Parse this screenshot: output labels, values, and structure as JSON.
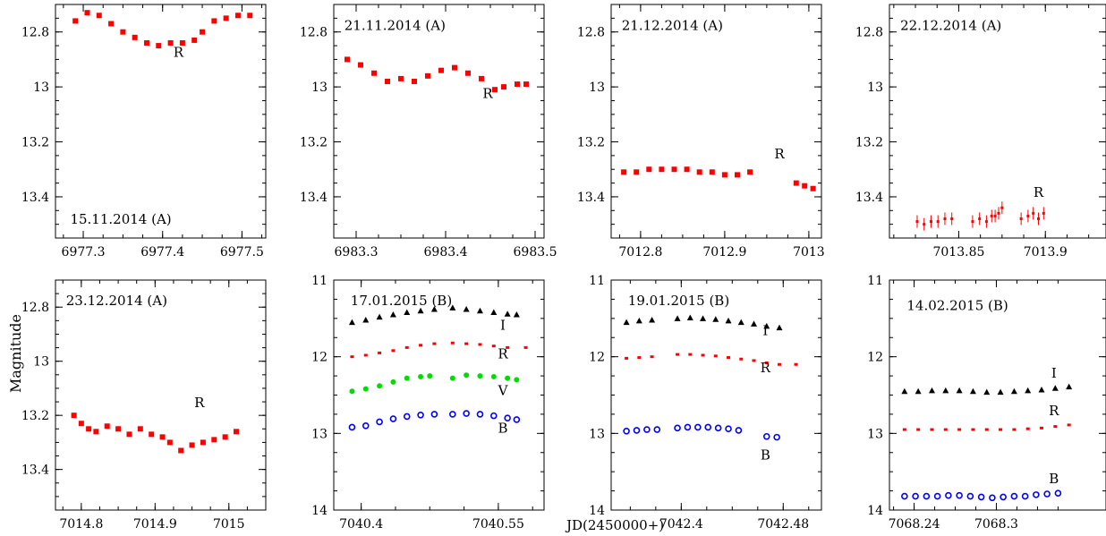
{
  "figure": {
    "ylabel": "Magnitude",
    "xlabel": "JD(2450000+)"
  },
  "chart_data": [
    {
      "type": "scatter",
      "date_label": "15.11.2014 (A)",
      "xlim": [
        6977.265,
        6977.53
      ],
      "ylim": [
        13.55,
        12.7
      ],
      "xticks": [
        6977.3,
        6977.4,
        6977.5
      ],
      "xtick_labels": [
        "6977.3",
        "6977.4",
        "6977.5"
      ],
      "yticks": [
        12.8,
        13,
        13.2,
        13.4
      ],
      "ytick_labels": [
        "12.8",
        "13",
        "13.2",
        "13.4"
      ],
      "series": [
        {
          "name": "R",
          "color": "#ff0000",
          "marker": "square",
          "x": [
            6977.29,
            6977.305,
            6977.32,
            6977.335,
            6977.35,
            6977.365,
            6977.38,
            6977.395,
            6977.41,
            6977.425,
            6977.44,
            6977.45,
            6977.465,
            6977.48,
            6977.495,
            6977.51
          ],
          "y": [
            12.76,
            12.73,
            12.74,
            12.77,
            12.8,
            12.82,
            12.84,
            12.85,
            12.84,
            12.84,
            12.83,
            12.8,
            12.76,
            12.75,
            12.74,
            12.74
          ]
        }
      ],
      "labels": [
        {
          "text": "R",
          "x": 6977.42,
          "y": 12.89
        }
      ]
    },
    {
      "type": "scatter",
      "date_label": "21.11.2014 (A)",
      "xlim": [
        6983.275,
        6983.51
      ],
      "ylim": [
        13.55,
        12.7
      ],
      "xticks": [
        6983.3,
        6983.4,
        6983.5
      ],
      "xtick_labels": [
        "6983.3",
        "6983.4",
        "6983.5"
      ],
      "yticks": [
        12.8,
        13,
        13.2,
        13.4
      ],
      "ytick_labels": [
        "12.8",
        "13",
        "13.2",
        "13.4"
      ],
      "series": [
        {
          "name": "R",
          "color": "#ff0000",
          "marker": "square",
          "x": [
            6983.29,
            6983.305,
            6983.32,
            6983.335,
            6983.35,
            6983.365,
            6983.38,
            6983.395,
            6983.41,
            6983.425,
            6983.44,
            6983.455,
            6983.465,
            6983.48,
            6983.49
          ],
          "y": [
            12.9,
            12.92,
            12.95,
            12.98,
            12.97,
            12.98,
            12.96,
            12.94,
            12.93,
            12.95,
            12.97,
            13.01,
            13.0,
            12.99,
            12.99
          ]
        }
      ],
      "labels": [
        {
          "text": "R",
          "x": 6983.447,
          "y": 13.04
        }
      ]
    },
    {
      "type": "scatter",
      "date_label": "21.12.2014 (A)",
      "xlim": [
        7012.765,
        7013.015
      ],
      "ylim": [
        13.55,
        12.7
      ],
      "xticks": [
        7012.8,
        7012.9,
        7013
      ],
      "xtick_labels": [
        "7012.8",
        "7012.9",
        "7013"
      ],
      "yticks": [
        12.8,
        13,
        13.2,
        13.4
      ],
      "ytick_labels": [
        "12.8",
        "13",
        "13.2",
        "13.4"
      ],
      "series": [
        {
          "name": "R",
          "color": "#ff0000",
          "marker": "square",
          "x": [
            7012.78,
            7012.795,
            7012.81,
            7012.825,
            7012.84,
            7012.855,
            7012.87,
            7012.885,
            7012.9,
            7012.915,
            7012.93,
            7012.985,
            7012.995,
            7013.005
          ],
          "y": [
            13.31,
            13.31,
            13.3,
            13.3,
            13.3,
            13.3,
            13.31,
            13.31,
            13.32,
            13.32,
            13.31,
            13.35,
            13.36,
            13.37
          ]
        }
      ],
      "labels": [
        {
          "text": "R",
          "x": 7012.965,
          "y": 13.26
        }
      ]
    },
    {
      "type": "scatter",
      "date_label": "22.12.2014 (A)",
      "xlim": [
        7013.81,
        7013.935
      ],
      "ylim": [
        13.55,
        12.7
      ],
      "xticks": [
        7013.85,
        7013.9
      ],
      "xtick_labels": [
        "7013.85",
        "7013.9"
      ],
      "yticks": [
        12.8,
        13,
        13.2,
        13.4
      ],
      "ytick_labels": [
        "12.8",
        "13",
        "13.2",
        "13.4"
      ],
      "series": [
        {
          "name": "R",
          "color": "#ff0000",
          "marker": "errorbar",
          "x": [
            7013.826,
            7013.83,
            7013.834,
            7013.838,
            7013.842,
            7013.846,
            7013.858,
            7013.862,
            7013.866,
            7013.869,
            7013.871,
            7013.873,
            7013.875,
            7013.886,
            7013.89,
            7013.893,
            7013.896,
            7013.899
          ],
          "y": [
            13.49,
            13.5,
            13.49,
            13.49,
            13.48,
            13.48,
            13.49,
            13.48,
            13.49,
            13.47,
            13.47,
            13.46,
            13.44,
            13.48,
            13.47,
            13.46,
            13.48,
            13.46
          ]
        }
      ],
      "labels": [
        {
          "text": "R",
          "x": 7013.896,
          "y": 13.4
        }
      ]
    },
    {
      "type": "scatter",
      "date_label": "23.12.2014 (A)",
      "xlim": [
        7014.765,
        7015.05
      ],
      "ylim": [
        13.55,
        12.7
      ],
      "xticks": [
        7014.8,
        7014.9,
        7015
      ],
      "xtick_labels": [
        "7014.8",
        "7014.9",
        "7015"
      ],
      "yticks": [
        12.8,
        13,
        13.2,
        13.4
      ],
      "ytick_labels": [
        "12.8",
        "13",
        "13.2",
        "13.4"
      ],
      "series": [
        {
          "name": "R",
          "color": "#ff0000",
          "marker": "square",
          "x": [
            7014.79,
            7014.8,
            7014.81,
            7014.82,
            7014.835,
            7014.85,
            7014.865,
            7014.88,
            7014.895,
            7014.91,
            7014.92,
            7014.935,
            7014.95,
            7014.965,
            7014.98,
            7014.995,
            7015.01
          ],
          "y": [
            13.2,
            13.23,
            13.25,
            13.26,
            13.24,
            13.25,
            13.27,
            13.25,
            13.27,
            13.28,
            13.3,
            13.33,
            13.31,
            13.3,
            13.29,
            13.28,
            13.26
          ]
        }
      ],
      "labels": [
        {
          "text": "R",
          "x": 7014.96,
          "y": 13.17
        }
      ]
    },
    {
      "type": "scatter",
      "date_label": "17.01.2015 (B)",
      "xlim": [
        7040.37,
        7040.6
      ],
      "ylim": [
        14,
        11
      ],
      "xticks": [
        7040.4,
        7040.55
      ],
      "xtick_labels": [
        "7040.4",
        "7040.55"
      ],
      "yticks": [
        11,
        12,
        13,
        14
      ],
      "ytick_labels": [
        "11",
        "12",
        "13",
        "14"
      ],
      "series": [
        {
          "name": "I",
          "color": "#000000",
          "marker": "triangle",
          "x": [
            7040.39,
            7040.405,
            7040.42,
            7040.435,
            7040.45,
            7040.465,
            7040.48,
            7040.5,
            7040.515,
            7040.53,
            7040.545,
            7040.56,
            7040.57
          ],
          "y": [
            11.55,
            11.52,
            11.48,
            11.45,
            11.42,
            11.4,
            11.38,
            11.36,
            11.38,
            11.4,
            11.42,
            11.44,
            11.45
          ]
        },
        {
          "name": "R",
          "color": "#ff0000",
          "marker": "dot",
          "x": [
            7040.39,
            7040.405,
            7040.42,
            7040.435,
            7040.45,
            7040.465,
            7040.48,
            7040.5,
            7040.515,
            7040.53,
            7040.545,
            7040.56,
            7040.58
          ],
          "y": [
            12.0,
            11.98,
            11.95,
            11.92,
            11.88,
            11.85,
            11.83,
            11.82,
            11.83,
            11.84,
            11.86,
            11.88,
            11.88
          ]
        },
        {
          "name": "V",
          "color": "#00dd00",
          "marker": "circle",
          "x": [
            7040.39,
            7040.405,
            7040.42,
            7040.435,
            7040.45,
            7040.465,
            7040.475,
            7040.5,
            7040.515,
            7040.53,
            7040.545,
            7040.56,
            7040.57
          ],
          "y": [
            12.45,
            12.42,
            12.38,
            12.33,
            12.28,
            12.26,
            12.25,
            12.28,
            12.24,
            12.25,
            12.26,
            12.28,
            12.3
          ]
        },
        {
          "name": "B",
          "color": "#0000ff",
          "marker": "ocircle",
          "x": [
            7040.39,
            7040.405,
            7040.42,
            7040.435,
            7040.45,
            7040.465,
            7040.48,
            7040.5,
            7040.515,
            7040.53,
            7040.545,
            7040.56,
            7040.57
          ],
          "y": [
            12.92,
            12.9,
            12.85,
            12.81,
            12.78,
            12.76,
            12.75,
            12.75,
            12.74,
            12.75,
            12.77,
            12.8,
            12.82
          ]
        }
      ],
      "labels": [
        {
          "text": "I",
          "x": 7040.555,
          "y": 11.65
        },
        {
          "text": "R",
          "x": 7040.555,
          "y": 12.02
        },
        {
          "text": "V",
          "x": 7040.555,
          "y": 12.5
        },
        {
          "text": "B",
          "x": 7040.555,
          "y": 12.99
        }
      ]
    },
    {
      "type": "scatter",
      "date_label": "19.01.2015 (B)",
      "xlim": [
        7042.345,
        7042.51
      ],
      "ylim": [
        14,
        11
      ],
      "xticks": [
        7042.4,
        7042.48
      ],
      "xtick_labels": [
        "7042.4",
        "7042.48"
      ],
      "yticks": [
        11,
        12,
        13,
        14
      ],
      "ytick_labels": [
        "11",
        "12",
        "13",
        "14"
      ],
      "series": [
        {
          "name": "I",
          "color": "#000000",
          "marker": "triangle",
          "x": [
            7042.357,
            7042.367,
            7042.377,
            7042.397,
            7042.407,
            7042.417,
            7042.427,
            7042.437,
            7042.447,
            7042.457,
            7042.467,
            7042.477
          ],
          "y": [
            11.55,
            11.53,
            11.52,
            11.5,
            11.49,
            11.5,
            11.51,
            11.53,
            11.55,
            11.57,
            11.6,
            11.62
          ]
        },
        {
          "name": "R",
          "color": "#ff0000",
          "marker": "dot",
          "x": [
            7042.357,
            7042.367,
            7042.377,
            7042.397,
            7042.407,
            7042.417,
            7042.427,
            7042.437,
            7042.447,
            7042.457,
            7042.467,
            7042.477,
            7042.49
          ],
          "y": [
            12.02,
            12.01,
            12.0,
            11.97,
            11.97,
            11.98,
            11.99,
            12.01,
            12.03,
            12.05,
            12.08,
            12.1,
            12.1
          ]
        },
        {
          "name": "B",
          "color": "#0000ff",
          "marker": "ocircle",
          "x": [
            7042.357,
            7042.365,
            7042.373,
            7042.381,
            7042.397,
            7042.405,
            7042.413,
            7042.421,
            7042.429,
            7042.437,
            7042.445,
            7042.467,
            7042.475
          ],
          "y": [
            12.97,
            12.96,
            12.95,
            12.95,
            12.93,
            12.92,
            12.92,
            12.92,
            12.93,
            12.94,
            12.96,
            13.04,
            13.05
          ]
        }
      ],
      "labels": [
        {
          "text": "I",
          "x": 7042.466,
          "y": 11.72
        },
        {
          "text": "R",
          "x": 7042.466,
          "y": 12.2
        },
        {
          "text": "B",
          "x": 7042.466,
          "y": 13.34
        }
      ]
    },
    {
      "type": "scatter",
      "date_label": "14.02.2015 (B)",
      "xlim": [
        7068.222,
        7068.38
      ],
      "ylim": [
        14,
        11
      ],
      "xticks": [
        7068.24,
        7068.3
      ],
      "xtick_labels": [
        "7068.24",
        "7068.3"
      ],
      "yticks": [
        11,
        12,
        13,
        14
      ],
      "ytick_labels": [
        "11",
        "12",
        "13",
        "14"
      ],
      "series": [
        {
          "name": "I",
          "color": "#000000",
          "marker": "triangle",
          "x": [
            7068.233,
            7068.243,
            7068.253,
            7068.263,
            7068.273,
            7068.283,
            7068.293,
            7068.303,
            7068.313,
            7068.323,
            7068.333,
            7068.343,
            7068.353
          ],
          "y": [
            12.45,
            12.45,
            12.44,
            12.44,
            12.44,
            12.45,
            12.46,
            12.46,
            12.45,
            12.44,
            12.43,
            12.41,
            12.39
          ]
        },
        {
          "name": "R",
          "color": "#ff0000",
          "marker": "dot",
          "x": [
            7068.233,
            7068.243,
            7068.253,
            7068.263,
            7068.273,
            7068.283,
            7068.293,
            7068.303,
            7068.313,
            7068.323,
            7068.333,
            7068.343,
            7068.353
          ],
          "y": [
            12.95,
            12.95,
            12.95,
            12.95,
            12.95,
            12.95,
            12.95,
            12.95,
            12.95,
            12.94,
            12.93,
            12.91,
            12.89
          ]
        },
        {
          "name": "B",
          "color": "#0000ff",
          "marker": "ocircle",
          "x": [
            7068.233,
            7068.241,
            7068.249,
            7068.257,
            7068.265,
            7068.273,
            7068.281,
            7068.289,
            7068.297,
            7068.305,
            7068.313,
            7068.321,
            7068.329,
            7068.337,
            7068.345
          ],
          "y": [
            13.82,
            13.82,
            13.82,
            13.82,
            13.81,
            13.81,
            13.82,
            13.83,
            13.84,
            13.83,
            13.82,
            13.82,
            13.8,
            13.79,
            13.78
          ]
        }
      ],
      "labels": [
        {
          "text": "I",
          "x": 7068.342,
          "y": 12.27
        },
        {
          "text": "R",
          "x": 7068.342,
          "y": 12.76
        },
        {
          "text": "B",
          "x": 7068.342,
          "y": 13.65
        }
      ]
    }
  ]
}
